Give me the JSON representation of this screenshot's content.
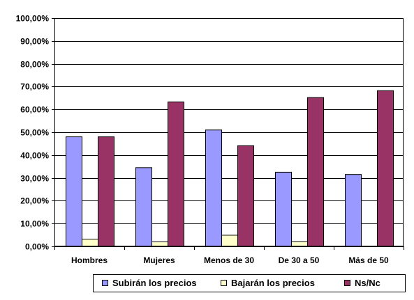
{
  "chart_data": {
    "type": "bar",
    "title": "",
    "xlabel": "",
    "ylabel": "",
    "categories": [
      "Hombres",
      "Mujeres",
      "Menos de 30",
      "De 30 a 50",
      "Más de 50"
    ],
    "series": [
      {
        "name": "Subirán los precios",
        "color": "#9999FF",
        "values": [
          48.0,
          34.5,
          51.0,
          32.5,
          31.5
        ]
      },
      {
        "name": "Bajarán los precios",
        "color": "#FFFFCC",
        "values": [
          3.2,
          2.0,
          4.9,
          2.1,
          0.0
        ]
      },
      {
        "name": "Ns/Nc",
        "color": "#993366",
        "values": [
          48.0,
          63.3,
          44.1,
          65.2,
          68.2
        ]
      }
    ],
    "ylim": [
      0,
      100
    ],
    "yticks": [
      "0,00%",
      "10,00%",
      "20,00%",
      "30,00%",
      "40,00%",
      "50,00%",
      "60,00%",
      "70,00%",
      "80,00%",
      "90,00%",
      "100,00%"
    ],
    "grid": true,
    "legend_position": "bottom-right"
  }
}
